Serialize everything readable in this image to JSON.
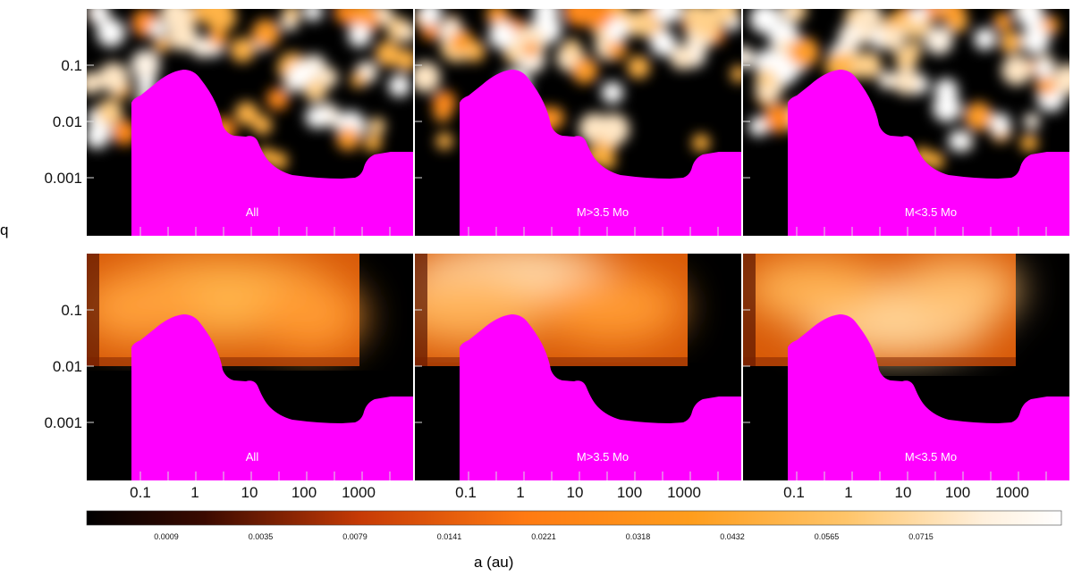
{
  "figure": {
    "y_axis_label": "q",
    "x_axis_label": "a (au)"
  },
  "colors": {
    "excluded_region": "#ff00ff",
    "background": "#000000",
    "tick": "#dddddd"
  },
  "chart_data": [
    {
      "type": "heatmap",
      "panel": "top-left",
      "label": "All",
      "xscale": "log",
      "yscale": "log",
      "x_tick_labels": [
        "0.1",
        "1",
        "10",
        "100",
        "1000"
      ],
      "y_tick_labels": [
        "0.1",
        "0.01",
        "0.001"
      ],
      "map_style": "discrete blobs",
      "intensity_region": "upper part of panel, above excluded region"
    },
    {
      "type": "heatmap",
      "panel": "top-middle",
      "label": "M>3.5 Mo",
      "xscale": "log",
      "yscale": "log",
      "x_tick_labels": [
        "0.1",
        "1",
        "10",
        "100",
        "1000"
      ],
      "y_tick_labels": [
        "0.1",
        "0.01",
        "0.001"
      ],
      "map_style": "discrete blobs"
    },
    {
      "type": "heatmap",
      "panel": "top-right",
      "label": "M<3.5 Mo",
      "xscale": "log",
      "yscale": "log",
      "x_tick_labels": [
        "0.1",
        "1",
        "10",
        "100",
        "1000"
      ],
      "y_tick_labels": [
        "0.1",
        "0.01",
        "0.001"
      ],
      "map_style": "discrete blobs"
    },
    {
      "type": "heatmap",
      "panel": "bottom-left",
      "label": "All",
      "xscale": "log",
      "yscale": "log",
      "x_tick_labels": [
        "0.1",
        "1",
        "10",
        "100",
        "1000"
      ],
      "y_tick_labels": [
        "0.1",
        "0.01",
        "0.001"
      ],
      "map_style": "smoothed",
      "filled_x_range": [
        0.01,
        1000
      ],
      "filled_q_range": [
        0.01,
        1
      ]
    },
    {
      "type": "heatmap",
      "panel": "bottom-middle",
      "label": "M>3.5 Mo",
      "xscale": "log",
      "yscale": "log",
      "x_tick_labels": [
        "0.1",
        "1",
        "10",
        "100",
        "1000"
      ],
      "y_tick_labels": [
        "0.1",
        "0.01",
        "0.001"
      ],
      "map_style": "smoothed",
      "filled_x_range": [
        0.01,
        1000
      ],
      "filled_q_range": [
        0.01,
        1
      ]
    },
    {
      "type": "heatmap",
      "panel": "bottom-right",
      "label": "M<3.5 Mo",
      "xscale": "log",
      "yscale": "log",
      "x_tick_labels": [
        "0.1",
        "1",
        "10",
        "100",
        "1000"
      ],
      "y_tick_labels": [
        "0.1",
        "0.01",
        "0.001"
      ],
      "map_style": "smoothed",
      "filled_x_range": [
        0.01,
        1000
      ],
      "filled_q_range": [
        0.01,
        1
      ]
    },
    {
      "type": "colorbar",
      "tick_labels": [
        "0.0009",
        "0.0035",
        "0.0079",
        "0.0141",
        "0.0221",
        "0.0318",
        "0.0432",
        "0.0565",
        "0.0715"
      ],
      "colormap": "black-orange-white"
    }
  ]
}
